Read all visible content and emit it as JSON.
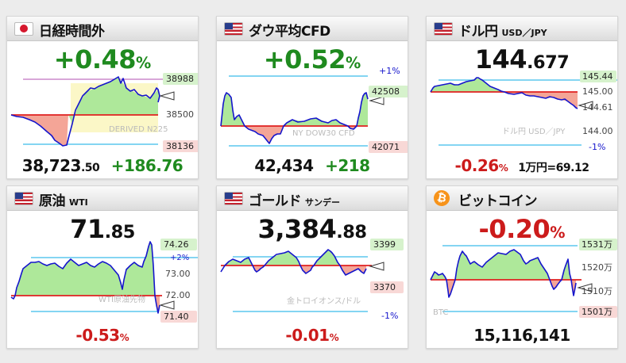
{
  "colors": {
    "up": "#1f8a1f",
    "down": "#cc1b1b",
    "line": "#1515cc",
    "prev": "#e02020",
    "range": "#5cc7ee",
    "up_fill": "#aee89a",
    "down_fill": "#f4a597",
    "hi_tag": "#d6f2cc",
    "lo_tag": "#f8d8d6",
    "cfd_high_band": "#d8a0d8"
  },
  "cards": [
    {
      "id": "nikkei",
      "title": "日経時間外",
      "subtitle": "",
      "icon": "flag-jp-icon",
      "change_pct": "+0.48",
      "pct_unit": "%",
      "direction": "up",
      "price_main": "38,723",
      "price_frac": ".50",
      "change_abs": "+186.76",
      "watermark": "DERIVED N225",
      "ticks": {
        "high": "38988",
        "mid": "38500",
        "low": "38136"
      }
    },
    {
      "id": "dow",
      "title": "ダウ平均CFD",
      "subtitle": "",
      "icon": "flag-us-icon",
      "change_pct": "+0.52",
      "pct_unit": "%",
      "direction": "up",
      "price_main": "42,434",
      "price_frac": "",
      "change_abs": "+218",
      "watermark": "NY DOW30 CFD",
      "ticks": {
        "band_top": "+1%",
        "high": "42508",
        "low": "42071"
      }
    },
    {
      "id": "usdjpy",
      "title": "ドル円",
      "subtitle": "USD／JPY",
      "icon": "flag-us-icon",
      "change_pct": "-0.26",
      "pct_unit": "%",
      "direction": "down",
      "price_main": "144",
      "price_frac": ".677",
      "extra_label": "1万円=69.12",
      "watermark": "ドル円 USD／JPY",
      "ticks": {
        "high": "145.44",
        "t1": "145.00",
        "t2": "144.61",
        "t3": "144.00",
        "band_bottom": "-1%"
      }
    },
    {
      "id": "wti",
      "title": "原油",
      "subtitle": "WTI",
      "icon": "flag-us-icon",
      "change_pct": "-0.53",
      "pct_unit": "%",
      "direction": "down",
      "price_main": "71",
      "price_frac": ".85",
      "watermark": "WTI原油先物",
      "ticks": {
        "high": "74.26",
        "band_top": "+2%",
        "t1": "73.00",
        "t2": "72.00",
        "low": "71.40"
      }
    },
    {
      "id": "gold",
      "title": "ゴールド",
      "subtitle": "サンデー",
      "icon": "flag-us-icon",
      "change_pct": "-0.01",
      "pct_unit": "%",
      "direction": "down",
      "price_main": "3,384",
      "price_frac": ".88",
      "watermark": "金トロイオンス/ドル",
      "ticks": {
        "high": "3399",
        "low": "3370",
        "band_bottom": "-1%"
      }
    },
    {
      "id": "btc",
      "title": "ビットコイン",
      "subtitle": "",
      "icon": "bitcoin-icon",
      "change_pct": "-0.20",
      "pct_unit": "%",
      "direction": "down",
      "price_main": "15,116,141",
      "price_frac": "",
      "watermark": "BTC",
      "ticks": {
        "high": "1531万",
        "t1": "1520万",
        "t2": "1510万",
        "low": "1501万"
      }
    }
  ]
}
